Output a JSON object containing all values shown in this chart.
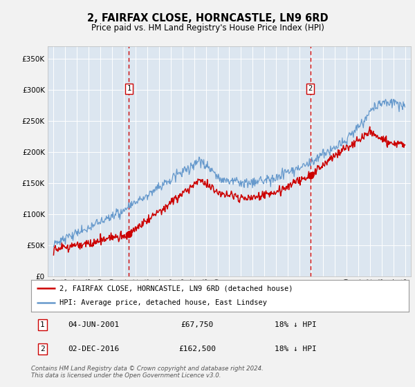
{
  "title": "2, FAIRFAX CLOSE, HORNCASTLE, LN9 6RD",
  "subtitle": "Price paid vs. HM Land Registry's House Price Index (HPI)",
  "sale1_date_num": 2001.43,
  "sale1_price": 67750,
  "sale1_label": "1",
  "sale1_date_str": "04-JUN-2001",
  "sale1_hpi_pct": "18% ↓ HPI",
  "sale2_date_num": 2016.92,
  "sale2_price": 162500,
  "sale2_label": "2",
  "sale2_date_str": "02-DEC-2016",
  "sale2_hpi_pct": "18% ↓ HPI",
  "hpi_line_color": "#6699cc",
  "price_line_color": "#cc0000",
  "vline_color": "#cc0000",
  "plot_bg_color": "#dce6f0",
  "grid_color": "#ffffff",
  "fig_bg_color": "#f2f2f2",
  "legend_label_price": "2, FAIRFAX CLOSE, HORNCASTLE, LN9 6RD (detached house)",
  "legend_label_hpi": "HPI: Average price, detached house, East Lindsey",
  "footnote": "Contains HM Land Registry data © Crown copyright and database right 2024.\nThis data is licensed under the Open Government Licence v3.0.",
  "ylim": [
    0,
    370000
  ],
  "yticks": [
    0,
    50000,
    100000,
    150000,
    200000,
    250000,
    300000,
    350000
  ],
  "xmin": 1994.5,
  "xmax": 2025.5
}
